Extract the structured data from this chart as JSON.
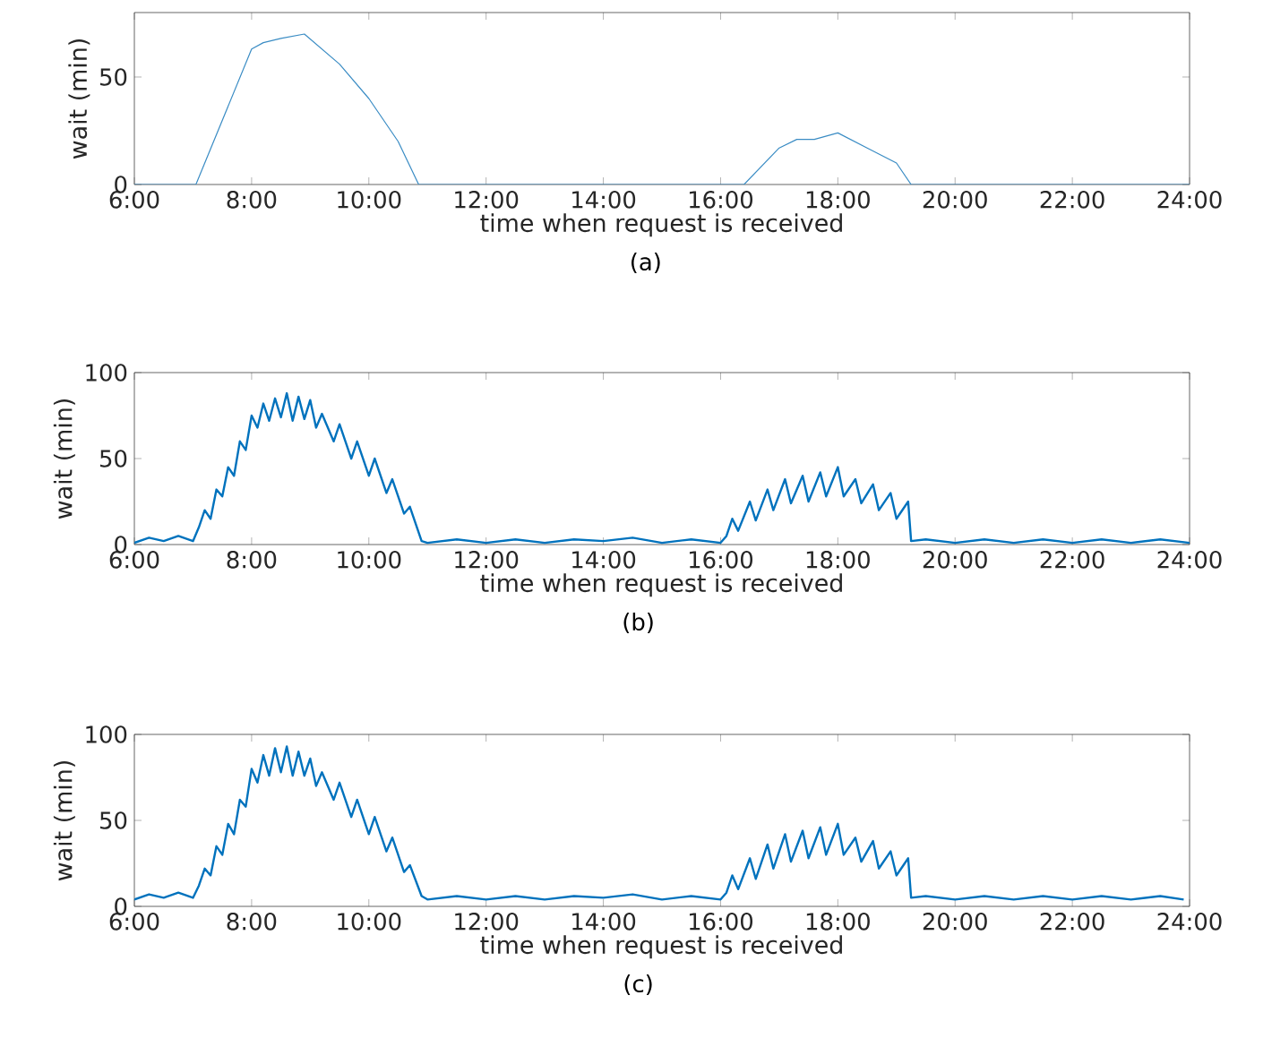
{
  "chart_data": [
    {
      "type": "line",
      "xlabel": "time when request is received",
      "ylabel": "wait (min)",
      "annotations": [
        "(a)"
      ],
      "xlim": [
        6,
        24
      ],
      "ylim": [
        0,
        80
      ],
      "xticks": [
        {
          "value": 6,
          "label": "6:00"
        },
        {
          "value": 8,
          "label": "8:00"
        },
        {
          "value": 10,
          "label": "10:00"
        },
        {
          "value": 12,
          "label": "12:00"
        },
        {
          "value": 14,
          "label": "14:00"
        },
        {
          "value": 16,
          "label": "16:00"
        },
        {
          "value": 18,
          "label": "18:00"
        },
        {
          "value": 20,
          "label": "20:00"
        },
        {
          "value": 22,
          "label": "22:00"
        },
        {
          "value": 24,
          "label": "24:00"
        }
      ],
      "yticks": [
        0,
        50
      ],
      "grid": false,
      "line_style": "solid",
      "series": [
        {
          "color": "#3a8cc4",
          "x": [
            6,
            7.05,
            8,
            8.2,
            8.5,
            8.9,
            9.5,
            10,
            10.5,
            10.85,
            16.4,
            17,
            17.3,
            17.6,
            18,
            18.5,
            19,
            19.25,
            24
          ],
          "values": [
            0,
            0,
            63,
            66,
            68,
            70,
            56,
            40,
            20,
            0,
            0,
            17,
            21,
            21,
            24,
            17,
            10,
            0,
            0
          ]
        }
      ]
    },
    {
      "type": "line",
      "xlabel": "time when request is received",
      "ylabel": "wait (min)",
      "annotations": [
        "(b)"
      ],
      "xlim": [
        6,
        24
      ],
      "ylim": [
        0,
        100
      ],
      "xticks": [
        {
          "value": 6,
          "label": "6:00"
        },
        {
          "value": 8,
          "label": "8:00"
        },
        {
          "value": 10,
          "label": "10:00"
        },
        {
          "value": 12,
          "label": "12:00"
        },
        {
          "value": 14,
          "label": "14:00"
        },
        {
          "value": 16,
          "label": "16:00"
        },
        {
          "value": 18,
          "label": "18:00"
        },
        {
          "value": 20,
          "label": "20:00"
        },
        {
          "value": 22,
          "label": "22:00"
        },
        {
          "value": 24,
          "label": "24:00"
        }
      ],
      "yticks": [
        0,
        50,
        100
      ],
      "grid": false,
      "line_style": "solid",
      "series": [
        {
          "color": "#0072bd",
          "x": [
            6,
            6.25,
            6.5,
            6.75,
            7.0,
            7.1,
            7.2,
            7.3,
            7.4,
            7.5,
            7.6,
            7.7,
            7.8,
            7.9,
            8.0,
            8.1,
            8.2,
            8.3,
            8.4,
            8.5,
            8.6,
            8.7,
            8.8,
            8.9,
            9.0,
            9.1,
            9.2,
            9.4,
            9.5,
            9.7,
            9.8,
            10.0,
            10.1,
            10.3,
            10.4,
            10.6,
            10.7,
            10.9,
            11,
            11.5,
            12,
            12.5,
            13,
            13.5,
            14,
            14.5,
            15,
            15.5,
            16,
            16.1,
            16.2,
            16.3,
            16.5,
            16.6,
            16.8,
            16.9,
            17.1,
            17.2,
            17.4,
            17.5,
            17.7,
            17.8,
            18.0,
            18.1,
            18.3,
            18.4,
            18.6,
            18.7,
            18.9,
            19.0,
            19.2,
            19.25,
            19.5,
            20,
            20.5,
            21,
            21.5,
            22,
            22.5,
            23,
            23.5,
            24
          ],
          "values": [
            1,
            4,
            2,
            5,
            2,
            10,
            20,
            15,
            32,
            28,
            45,
            40,
            60,
            55,
            75,
            68,
            82,
            72,
            85,
            74,
            88,
            72,
            86,
            73,
            84,
            68,
            76,
            60,
            70,
            50,
            60,
            40,
            50,
            30,
            38,
            18,
            22,
            2,
            1,
            3,
            1,
            3,
            1,
            3,
            2,
            4,
            1,
            3,
            1,
            5,
            15,
            8,
            25,
            14,
            32,
            20,
            38,
            24,
            40,
            25,
            42,
            28,
            45,
            28,
            38,
            24,
            35,
            20,
            30,
            15,
            25,
            2,
            3,
            1,
            3,
            1,
            3,
            1,
            3,
            1,
            3,
            1
          ]
        }
      ]
    },
    {
      "type": "line",
      "xlabel": "time when request is received",
      "ylabel": "wait (min)",
      "annotations": [
        "(c)"
      ],
      "xlim": [
        6,
        24
      ],
      "ylim": [
        0,
        100
      ],
      "xticks": [
        {
          "value": 6,
          "label": "6:00"
        },
        {
          "value": 8,
          "label": "8:00"
        },
        {
          "value": 10,
          "label": "10:00"
        },
        {
          "value": 12,
          "label": "12:00"
        },
        {
          "value": 14,
          "label": "14:00"
        },
        {
          "value": 16,
          "label": "16:00"
        },
        {
          "value": 18,
          "label": "18:00"
        },
        {
          "value": 20,
          "label": "20:00"
        },
        {
          "value": 22,
          "label": "22:00"
        },
        {
          "value": 24,
          "label": "24:00"
        }
      ],
      "yticks": [
        0,
        50,
        100
      ],
      "grid": false,
      "line_style": "solid",
      "series": [
        {
          "color": "#0072bd",
          "x": [
            6,
            6.25,
            6.5,
            6.75,
            7.0,
            7.1,
            7.2,
            7.3,
            7.4,
            7.5,
            7.6,
            7.7,
            7.8,
            7.9,
            8.0,
            8.1,
            8.2,
            8.3,
            8.4,
            8.5,
            8.6,
            8.7,
            8.8,
            8.9,
            9.0,
            9.1,
            9.2,
            9.4,
            9.5,
            9.7,
            9.8,
            10.0,
            10.1,
            10.3,
            10.4,
            10.6,
            10.7,
            10.9,
            11,
            11.5,
            12,
            12.5,
            13,
            13.5,
            14,
            14.5,
            15,
            15.5,
            16,
            16.1,
            16.2,
            16.3,
            16.5,
            16.6,
            16.8,
            16.9,
            17.1,
            17.2,
            17.4,
            17.5,
            17.7,
            17.8,
            18.0,
            18.1,
            18.3,
            18.4,
            18.6,
            18.7,
            18.9,
            19.0,
            19.2,
            19.25,
            19.5,
            20,
            20.5,
            21,
            21.5,
            22,
            22.5,
            23,
            23.5,
            23.9
          ],
          "values": [
            4,
            7,
            5,
            8,
            5,
            12,
            22,
            18,
            35,
            30,
            48,
            42,
            62,
            58,
            80,
            72,
            88,
            76,
            92,
            78,
            93,
            76,
            90,
            76,
            86,
            70,
            78,
            62,
            72,
            52,
            62,
            42,
            52,
            32,
            40,
            20,
            24,
            6,
            4,
            6,
            4,
            6,
            4,
            6,
            5,
            7,
            4,
            6,
            4,
            8,
            18,
            10,
            28,
            16,
            36,
            22,
            42,
            26,
            44,
            28,
            46,
            30,
            48,
            30,
            40,
            26,
            38,
            22,
            32,
            18,
            28,
            5,
            6,
            4,
            6,
            4,
            6,
            4,
            6,
            4,
            6,
            4
          ]
        }
      ]
    }
  ]
}
